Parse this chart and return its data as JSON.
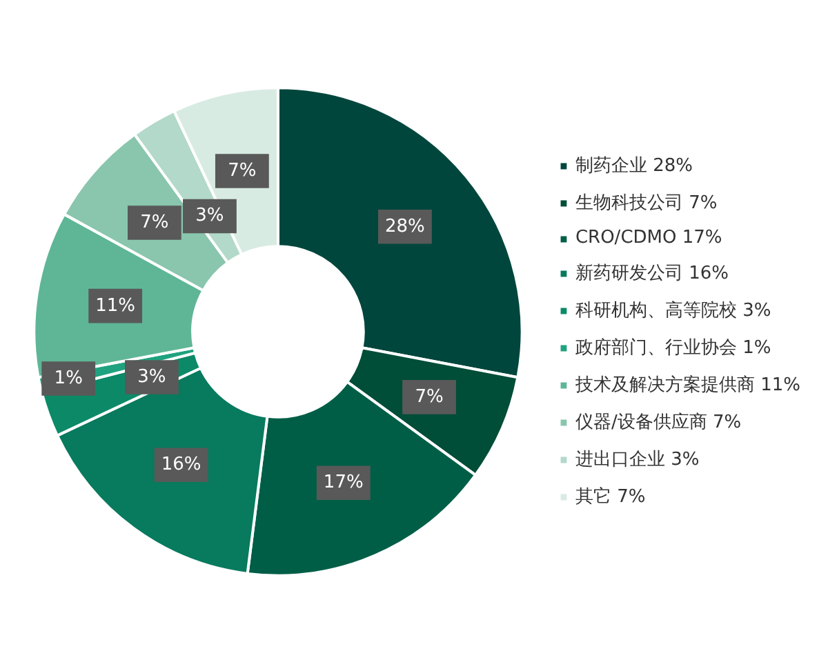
{
  "chart_data": {
    "type": "donut",
    "categories": [
      "制药企业 28%",
      "生物科技公司 7%",
      "CRO/CDMO 17%",
      "新药研发公司 16%",
      "科研机构、高等院校 3%",
      "政府部门、行业协会 1%",
      "技术及解决方案提供商 11%",
      "仪器/设备供应商 7%",
      "进出口企业 3%",
      "其它 7%"
    ],
    "values": [
      28,
      7,
      17,
      16,
      3,
      1,
      11,
      7,
      3,
      7
    ],
    "value_labels": [
      "28%",
      "7%",
      "17%",
      "16%",
      "3%",
      "1%",
      "11%",
      "7%",
      "3%",
      "7%"
    ],
    "colors": [
      "#00463c",
      "#004d38",
      "#005e47",
      "#087a5e",
      "#0c8a68",
      "#1fa27f",
      "#5fb696",
      "#89c6ad",
      "#b2d9c9",
      "#d8ebe3"
    ],
    "legend": "right"
  }
}
